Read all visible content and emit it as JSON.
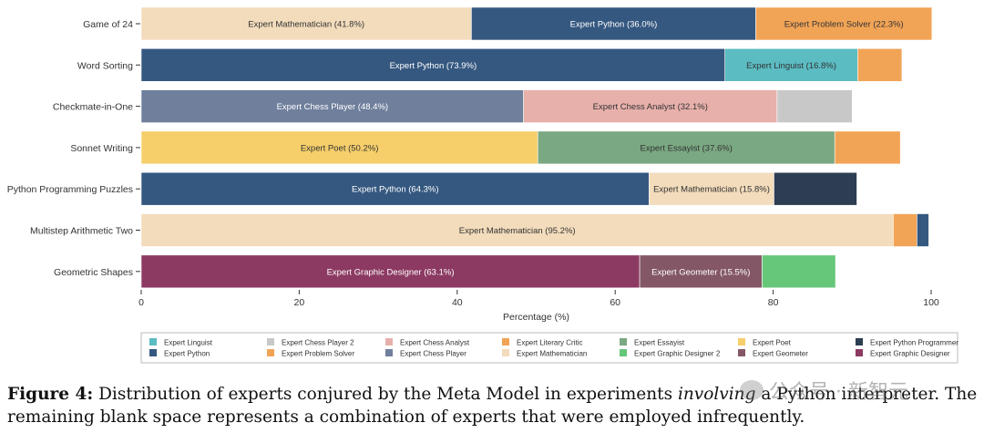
{
  "chart_data": {
    "type": "bar",
    "orientation": "horizontal",
    "stacked": true,
    "categories": [
      "Game of 24",
      "Word Sorting",
      "Checkmate-in-One",
      "Sonnet Writing",
      "Python Programming Puzzles",
      "Multistep Arithmetic Two",
      "Geometric Shapes"
    ],
    "segments": [
      [
        {
          "expert": "Expert Mathematician",
          "value": 41.8,
          "label": "Expert Mathematician (41.8%)"
        },
        {
          "expert": "Expert Python",
          "value": 36.0,
          "label": "Expert Python (36.0%)"
        },
        {
          "expert": "Expert Problem Solver",
          "value": 22.3,
          "label": "Expert Problem Solver (22.3%)"
        }
      ],
      [
        {
          "expert": "Expert Python",
          "value": 73.9,
          "label": "Expert Python (73.9%)"
        },
        {
          "expert": "Expert Linguist",
          "value": 16.8,
          "label": "Expert Linguist (16.8%)"
        },
        {
          "expert": "Expert Problem Solver",
          "value": 5.6,
          "label": ""
        }
      ],
      [
        {
          "expert": "Expert Chess Player",
          "value": 48.4,
          "label": "Expert Chess Player (48.4%)"
        },
        {
          "expert": "Expert Chess Analyst",
          "value": 32.1,
          "label": "Expert Chess Analyst (32.1%)"
        },
        {
          "expert": "Expert Chess Player 2",
          "value": 9.5,
          "label": ""
        }
      ],
      [
        {
          "expert": "Expert Poet",
          "value": 50.2,
          "label": "Expert Poet (50.2%)"
        },
        {
          "expert": "Expert Essayist",
          "value": 37.6,
          "label": "Expert Essayist (37.6%)"
        },
        {
          "expert": "Expert Literary Critic",
          "value": 8.3,
          "label": ""
        }
      ],
      [
        {
          "expert": "Expert Python",
          "value": 64.3,
          "label": "Expert Python (64.3%)"
        },
        {
          "expert": "Expert Mathematician",
          "value": 15.8,
          "label": "Expert Mathematician (15.8%)"
        },
        {
          "expert": "Expert Python Programmer",
          "value": 10.5,
          "label": ""
        }
      ],
      [
        {
          "expert": "Expert Mathematician",
          "value": 95.2,
          "label": "Expert Mathematician (95.2%)"
        },
        {
          "expert": "Expert Problem Solver",
          "value": 3.0,
          "label": ""
        },
        {
          "expert": "Expert Python",
          "value": 1.5,
          "label": ""
        }
      ],
      [
        {
          "expert": "Expert Graphic Designer",
          "value": 63.1,
          "label": "Expert Graphic Designer (63.1%)"
        },
        {
          "expert": "Expert Geometer",
          "value": 15.5,
          "label": "Expert Geometer (15.5%)"
        },
        {
          "expert": "Expert Graphic Designer 2",
          "value": 9.3,
          "label": ""
        }
      ]
    ],
    "xlabel": "Percentage (%)",
    "xlim": [
      0,
      100
    ],
    "xticks": [
      0,
      20,
      40,
      60,
      80,
      100
    ],
    "grid": false,
    "legend_position": "bottom",
    "legend": [
      {
        "name": "Expert Linguist",
        "color": "#5bbcc2"
      },
      {
        "name": "Expert Chess Player 2",
        "color": "#c8c8c8"
      },
      {
        "name": "Expert Chess Analyst",
        "color": "#e8b0ab"
      },
      {
        "name": "Expert Literary Critic",
        "color": "#f2a456"
      },
      {
        "name": "Expert Essayist",
        "color": "#7aa882"
      },
      {
        "name": "Expert Poet",
        "color": "#f6cf6b"
      },
      {
        "name": "Expert Python Programmer",
        "color": "#2d3d52"
      },
      {
        "name": "Expert Python",
        "color": "#355880"
      },
      {
        "name": "Expert Problem Solver",
        "color": "#f2a456"
      },
      {
        "name": "Expert Chess Player",
        "color": "#6f7f9c"
      },
      {
        "name": "Expert Mathematician",
        "color": "#f3dcbc"
      },
      {
        "name": "Expert Graphic Designer 2",
        "color": "#66c779"
      },
      {
        "name": "Expert Geometer",
        "color": "#845767"
      },
      {
        "name": "Expert Graphic Designer",
        "color": "#8c3a62"
      }
    ],
    "label_colors": {
      "Expert Mathematician": "#333333",
      "Expert Python": "#ffffff",
      "Expert Problem Solver": "#333333",
      "Expert Linguist": "#333333",
      "Expert Chess Player": "#ffffff",
      "Expert Chess Analyst": "#333333",
      "Expert Poet": "#333333",
      "Expert Essayist": "#333333",
      "Expert Graphic Designer": "#ffffff",
      "Expert Geometer": "#ffffff"
    }
  },
  "caption": {
    "fig_label": "Figure 4:",
    "text_before": " Distribution of experts conjured by the Meta Model in experiments ",
    "emphasis": "involving",
    "text_after": " a Python interpreter. The remaining blank space represents a combination of experts that were employed infrequently."
  },
  "watermark": "公众号 · 新智元"
}
